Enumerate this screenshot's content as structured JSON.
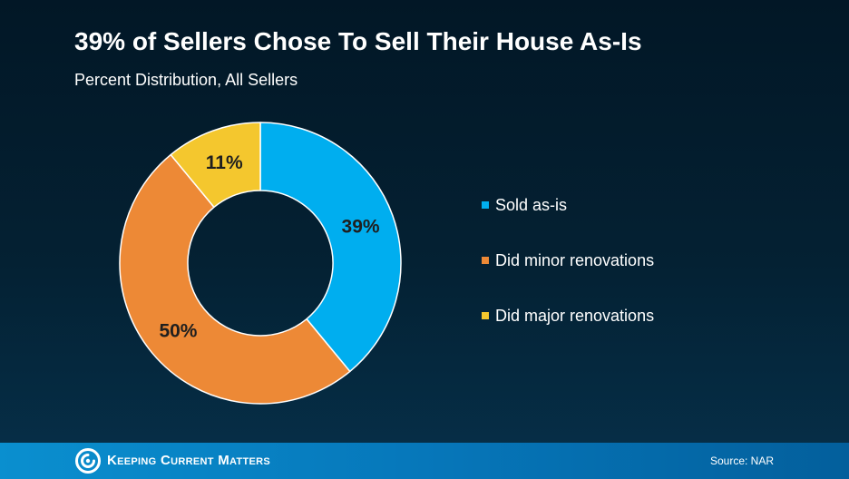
{
  "chart_data": {
    "type": "pie",
    "title": "39% of Sellers Chose To Sell Their House As-Is",
    "subtitle": "Percent Distribution, All Sellers",
    "donut": true,
    "legend_position": "right",
    "slices": [
      {
        "name": "Sold as-is",
        "value": 39,
        "label": "39%",
        "color": "#00aeef"
      },
      {
        "name": "Did minor renovations",
        "value": 50,
        "label": "50%",
        "color": "#ed8936"
      },
      {
        "name": "Did major renovations",
        "value": 11,
        "label": "11%",
        "color": "#f4c72e"
      }
    ]
  },
  "footer": {
    "brand": "Keeping Current Matters",
    "logo_icon": "kcm-swirl-icon",
    "source": "Source: NAR"
  }
}
